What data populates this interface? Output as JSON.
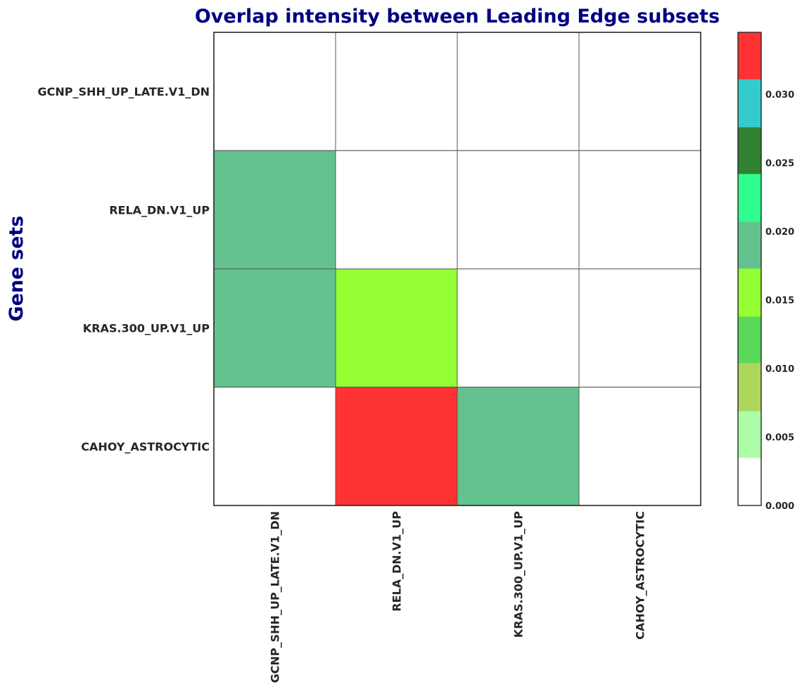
{
  "chart_data": {
    "type": "heatmap",
    "title": "Overlap intensity between Leading Edge subsets",
    "ylabel": "Gene sets",
    "xlabel": "",
    "rows": [
      "GCNP_SHH_UP_LATE.V1_DN",
      "RELA_DN.V1_UP",
      "KRAS.300_UP.V1_UP",
      "CAHOY_ASTROCYTIC"
    ],
    "columns": [
      "GCNP_SHH_UP_LATE.V1_DN",
      "RELA_DN.V1_UP",
      "KRAS.300_UP.V1_UP",
      "CAHOY_ASTROCYTIC"
    ],
    "values": [
      [
        0,
        0,
        0,
        0
      ],
      [
        0.019,
        0,
        0,
        0
      ],
      [
        0.019,
        0.016,
        0,
        0
      ],
      [
        0,
        0.034,
        0.019,
        0
      ]
    ],
    "colorbar": {
      "min": 0,
      "max": 0.0345,
      "boundaries": [
        0,
        0.0035,
        0.0069,
        0.0104,
        0.0138,
        0.0173,
        0.0207,
        0.0242,
        0.0276,
        0.0311,
        0.0345
      ],
      "colors": [
        "#ffffff",
        "#adfca8",
        "#afd65c",
        "#5ad85a",
        "#94ff33",
        "#64c28e",
        "#2eff8e",
        "#318232",
        "#36cbcb",
        "#ff3333"
      ],
      "ticks": [
        0,
        0.005,
        0.01,
        0.015,
        0.02,
        0.025,
        0.03
      ],
      "tick_labels": [
        "0.000",
        "0.005",
        "0.010",
        "0.015",
        "0.020",
        "0.025",
        "0.030"
      ]
    },
    "grid": true
  },
  "colors": {
    "title": "#000080",
    "ylabel": "#000080",
    "tick_text": "#262626",
    "cell_border": "#555555",
    "frame": "#262626"
  }
}
